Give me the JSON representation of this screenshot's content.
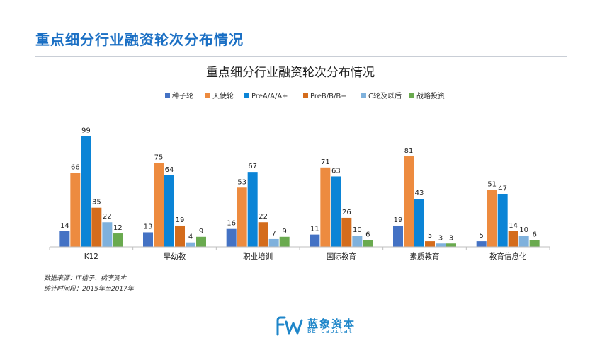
{
  "header": {
    "title": "重点细分行业融资轮次分布情况"
  },
  "chart_data": {
    "type": "bar",
    "title": "重点细分行业融资轮次分布情况",
    "categories": [
      "K12",
      "早幼教",
      "职业培训",
      "国际教育",
      "素质教育",
      "教育信息化"
    ],
    "series": [
      {
        "name": "种子轮",
        "color": "#4472c4",
        "values": [
          14,
          13,
          16,
          11,
          19,
          5
        ]
      },
      {
        "name": "天使轮",
        "color": "#ed8b3f",
        "values": [
          66,
          75,
          53,
          71,
          81,
          51
        ]
      },
      {
        "name": "PreA/A/A+",
        "color": "#0b84d6",
        "values": [
          99,
          64,
          67,
          63,
          43,
          47
        ]
      },
      {
        "name": "PreB/B/B+",
        "color": "#d46c1c",
        "values": [
          35,
          19,
          22,
          26,
          5,
          14
        ]
      },
      {
        "name": "C轮及以后",
        "color": "#7fb1dc",
        "values": [
          22,
          4,
          7,
          10,
          3,
          10
        ]
      },
      {
        "name": "战略投资",
        "color": "#6aaa4f",
        "values": [
          12,
          9,
          9,
          6,
          3,
          6
        ]
      }
    ],
    "ylim": [
      0,
      100
    ],
    "grid": false,
    "legend": "top-center",
    "xlabel": "",
    "ylabel": ""
  },
  "footer": {
    "source": "数据来源：IT桔子、桃李资本",
    "period": "统计时间段：2015年至2017年"
  },
  "logo": {
    "cn": "蓝象资本",
    "en": "BE Capital"
  }
}
